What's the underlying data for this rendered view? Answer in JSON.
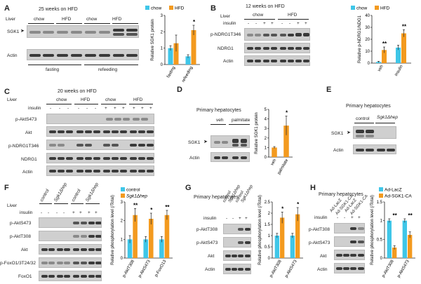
{
  "colors": {
    "chow": "#3fc6e8",
    "hfd": "#f39a1f",
    "band": "#3a3a3a",
    "blot_bg": "#cfcfcf"
  },
  "panelA": {
    "label": "A",
    "tissue": "Liver",
    "title": "25 weeks on HFD",
    "groups": [
      "chow",
      "HFD",
      "chow",
      "HFD"
    ],
    "rows": [
      "SGK1",
      "Actin"
    ],
    "conditions": [
      "fasting",
      "refeeding"
    ],
    "legend": [
      "chow",
      "HFD"
    ],
    "star": "*"
  },
  "panelB": {
    "label": "B",
    "tissue": "Liver",
    "title": "12 weeks on HFD",
    "groups": [
      "chow",
      "HFD"
    ],
    "treatment": "insulin",
    "signs": [
      "-",
      "-",
      "+",
      "+",
      "-",
      "-",
      "+",
      "+"
    ],
    "rows": [
      "p-NDRG1T346",
      "NDRG1",
      "Actin"
    ],
    "legend": [
      "chow",
      "HFD"
    ],
    "stars": [
      "**",
      "**"
    ]
  },
  "panelC": {
    "label": "C",
    "tissue": "Liver",
    "title": "20 weeks on HFD",
    "groups": [
      "chow",
      "HFD",
      "chow",
      "HFD"
    ],
    "treatment": "insulin",
    "signs": [
      "-",
      "-",
      "-",
      "-",
      "-",
      "-",
      "+",
      "+",
      "+",
      "+",
      "+",
      "+"
    ],
    "rows": [
      "p-AktS473",
      "Akt",
      "p-NDRG1T346",
      "NDRG1",
      "Actin"
    ]
  },
  "panelD": {
    "label": "D",
    "title": "Primary hepatocytes",
    "groups": [
      "veh",
      "palmitate"
    ],
    "rows": [
      "SGK1",
      "Actin"
    ],
    "star": "*"
  },
  "panelE": {
    "label": "E",
    "title": "Primary hepatocytes",
    "groups": [
      "control",
      "Sgk1Δhep"
    ],
    "rows": [
      "SGK1",
      "Actin"
    ]
  },
  "panelF": {
    "label": "F",
    "tissue": "Liver",
    "groups": [
      "control",
      "Sgk1Δhep",
      "control",
      "Sgk1Δhep"
    ],
    "treatment": "insulin",
    "signs": [
      "-",
      "-",
      "-",
      "-",
      "+",
      "+",
      "+",
      "+"
    ],
    "rows": [
      "p-AktS473",
      "p-AktT308",
      "Akt",
      "p-FoxO1/3T24/32",
      "FoxO1"
    ],
    "legend": [
      "control",
      "Sgk1Δhep"
    ],
    "stars": [
      "**",
      "*",
      "**"
    ]
  },
  "panelG": {
    "label": "G",
    "title": "Primary hepatocytes",
    "groups": [
      "control",
      "Sgk1Δhep",
      "control",
      "Sgk1Δhep"
    ],
    "treatment": "insulin",
    "signs": [
      "-",
      "-",
      "+",
      "+"
    ],
    "rows": [
      "p-AktT308",
      "p-AktS473",
      "Akt",
      "Actin"
    ],
    "stars": [
      "*",
      "*"
    ]
  },
  "panelH": {
    "label": "H",
    "title": "Primary hepatocytes",
    "groups": [
      "Ad-LacZ",
      "Ad-SGK1-CA",
      "Ad-LacZ",
      "Ad-SGK1-CA"
    ],
    "treatment": "insulin",
    "signs": [
      "-",
      "-",
      "+",
      "+"
    ],
    "rows": [
      "p-AktT308",
      "p-AktS473",
      "Akt",
      "Actin"
    ],
    "legend": [
      "Ad-LacZ",
      "Ad-SGK1-CA"
    ],
    "stars": [
      "**",
      "**"
    ]
  },
  "chart_data": [
    {
      "panel": "A",
      "type": "bar",
      "categories": [
        "fasting",
        "refeeding"
      ],
      "series": [
        {
          "name": "chow",
          "values": [
            1.0,
            0.5
          ]
        },
        {
          "name": "HFD",
          "values": [
            1.3,
            2.1
          ]
        }
      ],
      "errors": [
        [
          0.15,
          0.1
        ],
        [
          0.5,
          0.3
        ]
      ],
      "ylabel": "Relative SGK1 protein",
      "ylim": [
        0,
        3
      ],
      "yticks": [
        0,
        1,
        2,
        3
      ]
    },
    {
      "panel": "B",
      "type": "bar",
      "categories": [
        "veh",
        "insulin"
      ],
      "series": [
        {
          "name": "chow",
          "values": [
            1.0,
            13
          ]
        },
        {
          "name": "HFD",
          "values": [
            11,
            25
          ]
        }
      ],
      "errors": [
        [
          0.5,
          2
        ],
        [
          2.5,
          3
        ]
      ],
      "ylabel": "Relative p-NDRG1/NDG1",
      "ylim": [
        0,
        40
      ],
      "yticks": [
        0,
        10,
        20,
        30,
        40
      ]
    },
    {
      "panel": "D",
      "type": "bar",
      "categories": [
        "veh",
        "palmitate"
      ],
      "values": [
        1.0,
        3.3
      ],
      "errors": [
        0.1,
        1.0
      ],
      "ylabel": "Relative SGK1 protein",
      "ylim": [
        0,
        5
      ],
      "yticks": [
        0,
        1,
        2,
        3,
        4,
        5
      ]
    },
    {
      "panel": "F",
      "type": "bar",
      "categories": [
        "p-AktT308",
        "p-AktS473",
        "p-FoxO13"
      ],
      "series": [
        {
          "name": "control",
          "values": [
            1.0,
            1.0,
            1.0
          ]
        },
        {
          "name": "Sgk1Δhep",
          "values": [
            2.3,
            2.1,
            2.3
          ]
        }
      ],
      "errors": [
        [
          0.2,
          0.15,
          0.15
        ],
        [
          0.35,
          0.3,
          0.25
        ]
      ],
      "ylabel": "Relative phosphorylation level (/Total)",
      "ylim": [
        0,
        3
      ],
      "yticks": [
        0,
        1,
        2,
        3
      ]
    },
    {
      "panel": "G",
      "type": "bar",
      "categories": [
        "p-AktT308",
        "p-AktS473"
      ],
      "series": [
        {
          "name": "control",
          "values": [
            1.0,
            1.0
          ]
        },
        {
          "name": "Sgk1Δhep",
          "values": [
            1.8,
            1.95
          ]
        }
      ],
      "errors": [
        [
          0.1,
          0.1
        ],
        [
          0.25,
          0.3
        ]
      ],
      "ylabel": "Relative phosphorylation level (/Total)",
      "ylim": [
        0,
        2.5
      ],
      "yticks": [
        0,
        0.5,
        1.0,
        1.5,
        2.0,
        2.5
      ]
    },
    {
      "panel": "H",
      "type": "bar",
      "categories": [
        "p-AktT308",
        "p-AktS473"
      ],
      "series": [
        {
          "name": "Ad-LacZ",
          "values": [
            1.0,
            1.0
          ]
        },
        {
          "name": "Ad-SGK1-CA",
          "values": [
            0.28,
            0.62
          ]
        }
      ],
      "errors": [
        [
          0.05,
          0.05
        ],
        [
          0.05,
          0.08
        ]
      ],
      "ylabel": "Relative phosphorylation level (/Total)",
      "ylim": [
        0,
        1.5
      ],
      "yticks": [
        0,
        0.5,
        1.0,
        1.5
      ]
    }
  ]
}
